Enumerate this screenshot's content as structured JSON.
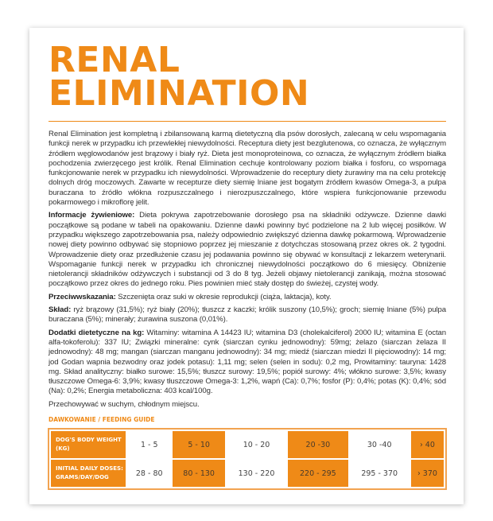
{
  "title": {
    "line1": "RENAL",
    "line2": "ELIMINATION"
  },
  "description": "Renal Elimination jest kompletną i zbilansowaną karmą dietetyczną dla psów dorosłych, zalecaną w celu wspomagania funkcji nerek w przypadku ich przewlekłej niewydolności. Receptura diety jest bezglutenowa, co oznacza, że wyłącznym źródłem węglowodanów jest brązowy i biały ryż. Dieta jest monoproteinowa, co oznacza, że wyłącznym źródłem białka pochodzenia zwierzęcego jest królik. Renal Elimination cechuje kontrolowany poziom białka i fosforu, co wspomaga funkcjonowanie nerek w przypadku ich niewydolności. Wprowadzenie do receptury diety żurawiny ma na celu protekcję dolnych dróg moczowych. Zawarte w recepturze diety siemię lniane jest bogatym źródłem kwasów Omega-3, a pulpa buraczana to źródło włókna rozpuszczalnego i nierozpuszczalnego, które wspiera funkcjonowanie przewodu pokarmowego i mikroflorę jelit.",
  "nutrition": {
    "label": "Informacje żywieniowe:",
    "text": " Dieta pokrywa zapotrzebowanie dorosłego psa na składniki odżywcze. Dzienne dawki początkowe są podane w tabeli na opakowaniu. Dzienne dawki powinny być podzielone na 2 lub więcej posiłków. W przypadku większego zapotrzebowania psa, należy odpowiednio zwiększyć dzienna dawkę pokarmową. Wprowadzenie nowej diety powinno odbywać się stopniowo poprzez jej mieszanie z dotychczas stosowaną przez okres ok. 2 tygodni. Wprowadzenie diety oraz przedłużenie czasu jej podawania powinno się obywać w konsultacji z lekarzem weterynarii. Wspomaganie funkcji nerek w przypadku ich chronicznej niewydolności początkowo do 6 miesięcy. Obniżenie nietolerancji składników odżywczych i substancji od 3 do 8 tyg. Jeżeli objawy nietolerancji zanikają, można stosować początkowo przez okres do jednego roku. Pies powinien mieć stały dostęp do świeżej, czystej wody."
  },
  "contraindications": {
    "label": "Przeciwwskazania:",
    "text": " Szczenięta oraz suki w okresie reprodukcji (ciąża, laktacja), koty."
  },
  "composition": {
    "label": "Skład:",
    "text": " ryż brązowy (31,5%); ryż biały (20%); tłuszcz z kaczki; królik suszony (10,5%); groch; siemię lniane (5%) pulpa buraczana (5%); minerały; żurawina suszona (0,01%)."
  },
  "additives": {
    "label": "Dodatki dietetyczne na kg:",
    "text": " Witaminy: witamina A 14423 IU; witamina D3 (cholekalciferol) 2000 IU; witamina E (octan alfa-tokoferolu): 337 IU; Związki mineralne: cynk (siarczan cynku jednowodny): 59mg; żelazo (siarczan żelaza II jednowodny): 48 mg; mangan (siarczan manganu jednowodny): 34 mg; miedź (siarczan miedzi II pięciowodny): 14 mg; jod Godan wapnia bezwodny oraz jodek potasu): 1,11 mg; selen (selen in sodu): 0,2 mg, Prowitaminy: tauryna: 1428 mg. Skład analityczny: białko surowe: 15,5%; tłuszcz surowy: 19,5%; popiół surowy: 4%; włókno surowe: 3,5%; kwasy tłuszczowe Omega-6: 3,9%; kwasy tłuszczowe Omega-3: 1,2%, wapń (Ca): 0,7%; fosfor (P): 0,4%; potas (K): 0,4%; sód (Na): 0,2%; Energia metaboliczna: 403 kcal/100g."
  },
  "storage": "Przechowywać w suchym, chłodnym miejscu.",
  "feeding_guide": {
    "label": "DAWKOWANIE / FEEDING GUIDE",
    "weight_header": "DOG'S BODY WEIGHT (KG)",
    "dose_header": "INITIAL DAILY DOSES: GRAMS/DAY/DOG",
    "weights": [
      "1 - 5",
      "5 - 10",
      "10 - 20",
      "20 -30",
      "30 -40",
      "› 40"
    ],
    "doses": [
      "28 - 80",
      "80 - 130",
      "130 - 220",
      "220 - 295",
      "295 - 370",
      "› 370"
    ]
  },
  "colors": {
    "accent": "#ef8a17",
    "text": "#333333"
  }
}
